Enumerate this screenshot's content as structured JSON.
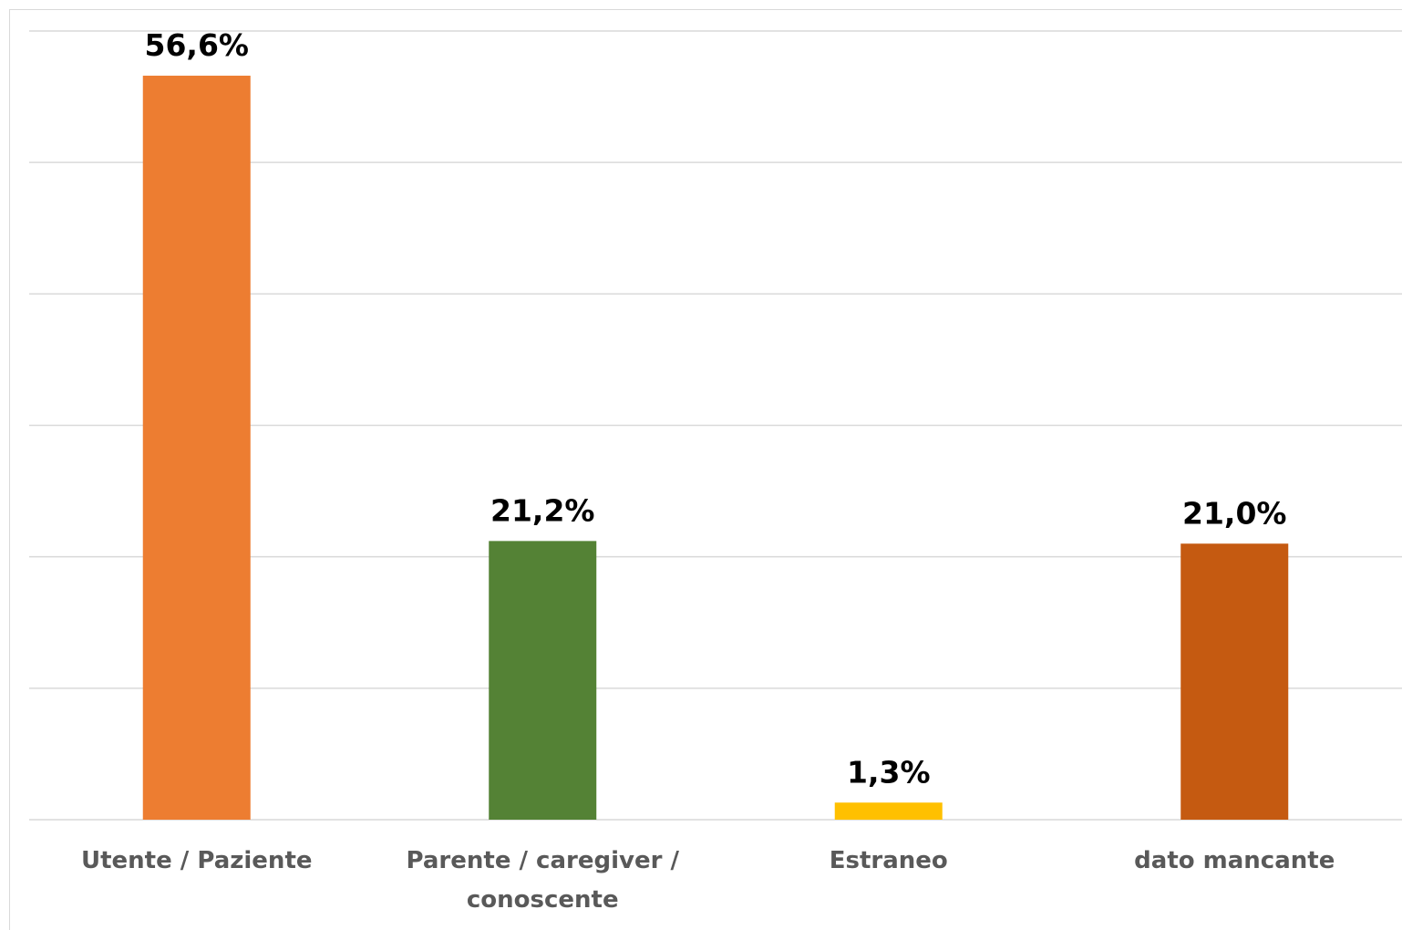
{
  "chart_data": {
    "type": "bar",
    "categories": [
      [
        "Utente / Paziente"
      ],
      [
        "Parente / caregiver /",
        "conoscente"
      ],
      [
        "Estraneo"
      ],
      [
        "dato mancante"
      ]
    ],
    "values": [
      56.6,
      21.2,
      1.3,
      21.0
    ],
    "data_labels": [
      "56,6%",
      "21,2%",
      "1,3%",
      "21,0%"
    ],
    "colors": [
      "#ED7D31",
      "#548235",
      "#FFC000",
      "#C55A11"
    ],
    "ylim": [
      0,
      60
    ],
    "grid_step": 10,
    "grid": true,
    "title": "",
    "xlabel": "",
    "ylabel": ""
  }
}
